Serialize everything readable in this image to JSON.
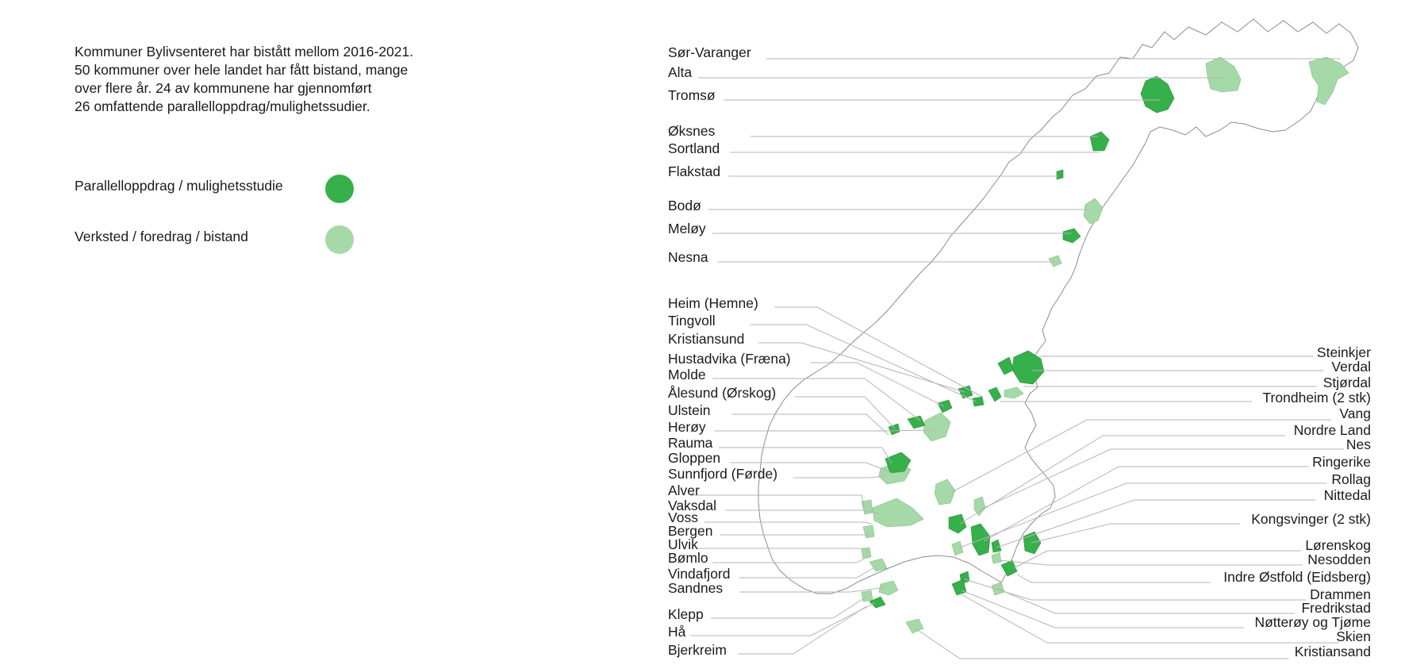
{
  "intro": {
    "lines": [
      "Kommuner Bylivsenteret har bistått mellom 2016-2021.",
      "50 kommuner over hele landet har fått bistand, mange",
      "over flere år. 24 av kommunene har gjennomført",
      "26 omfattende parallelloppdrag/mulighetssudier."
    ]
  },
  "legend": [
    {
      "label": "Parallelloppdrag / mulighetsstudie",
      "color": "#36b04a"
    },
    {
      "label": "Verksted / foredrag / bistand",
      "color": "#a6d9a8"
    }
  ],
  "colors": {
    "dark": "#36b04a",
    "light": "#a6d9a8",
    "outline": "#9a9a9a",
    "leader": "#b4b4b4"
  },
  "labels_left": [
    "Sør-Varanger",
    "Alta",
    "Tromsø",
    "Øksnes",
    "Sortland",
    "Flakstad",
    "Bodø",
    "Meløy",
    "Nesna",
    "Heim (Hemne)",
    "Tingvoll",
    "Kristiansund",
    "Hustadvika (Fræna)",
    "Molde",
    "Ålesund (Ørskog)",
    "Ulstein",
    "Herøy",
    "Rauma",
    "Gloppen",
    "Sunnfjord (Førde)",
    "Alver",
    "Vaksdal",
    "Voss",
    "Bergen",
    "Ulvik",
    "Bømlo",
    "Vindafjord",
    "Sandnes",
    "Klepp",
    "Hå",
    "Bjerkreim"
  ],
  "labels_right": [
    "Steinkjer",
    "Verdal",
    "Stjørdal",
    "Trondheim (2 stk)",
    "Vang",
    "Nordre Land",
    "Nes",
    "Ringerike",
    "Rollag",
    "Nittedal",
    "Kongsvinger (2 stk)",
    "Lørenskog",
    "Nesodden",
    "Indre Østfold (Eidsberg)",
    "Drammen",
    "Fredrikstad",
    "Nøtterøy og Tjøme",
    "Skien",
    "Kristiansand"
  ]
}
